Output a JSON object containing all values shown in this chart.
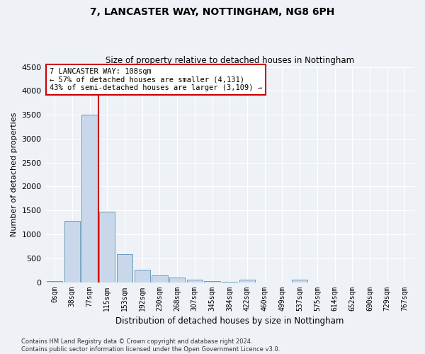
{
  "title": "7, LANCASTER WAY, NOTTINGHAM, NG8 6PH",
  "subtitle": "Size of property relative to detached houses in Nottingham",
  "xlabel": "Distribution of detached houses by size in Nottingham",
  "ylabel": "Number of detached properties",
  "bar_color": "#c8d8ea",
  "bar_edge_color": "#6a9cbc",
  "vline_color": "#cc0000",
  "vline_x_idx": 2,
  "annotation_box_text": "7 LANCASTER WAY: 108sqm\n← 57% of detached houses are smaller (4,131)\n43% of semi-detached houses are larger (3,109) →",
  "annotation_box_color": "#cc0000",
  "categories": [
    "0sqm",
    "38sqm",
    "77sqm",
    "115sqm",
    "153sqm",
    "192sqm",
    "230sqm",
    "268sqm",
    "307sqm",
    "345sqm",
    "384sqm",
    "422sqm",
    "460sqm",
    "499sqm",
    "537sqm",
    "575sqm",
    "614sqm",
    "652sqm",
    "690sqm",
    "729sqm",
    "767sqm"
  ],
  "values": [
    30,
    1280,
    3500,
    1470,
    580,
    255,
    140,
    90,
    50,
    20,
    5,
    50,
    0,
    0,
    50,
    0,
    0,
    0,
    0,
    0,
    0
  ],
  "ylim": [
    0,
    4500
  ],
  "yticks": [
    0,
    500,
    1000,
    1500,
    2000,
    2500,
    3000,
    3500,
    4000,
    4500
  ],
  "footer_line1": "Contains HM Land Registry data © Crown copyright and database right 2024.",
  "footer_line2": "Contains public sector information licensed under the Open Government Licence v3.0.",
  "bg_color": "#eef2f7",
  "grid_color": "#ffffff"
}
